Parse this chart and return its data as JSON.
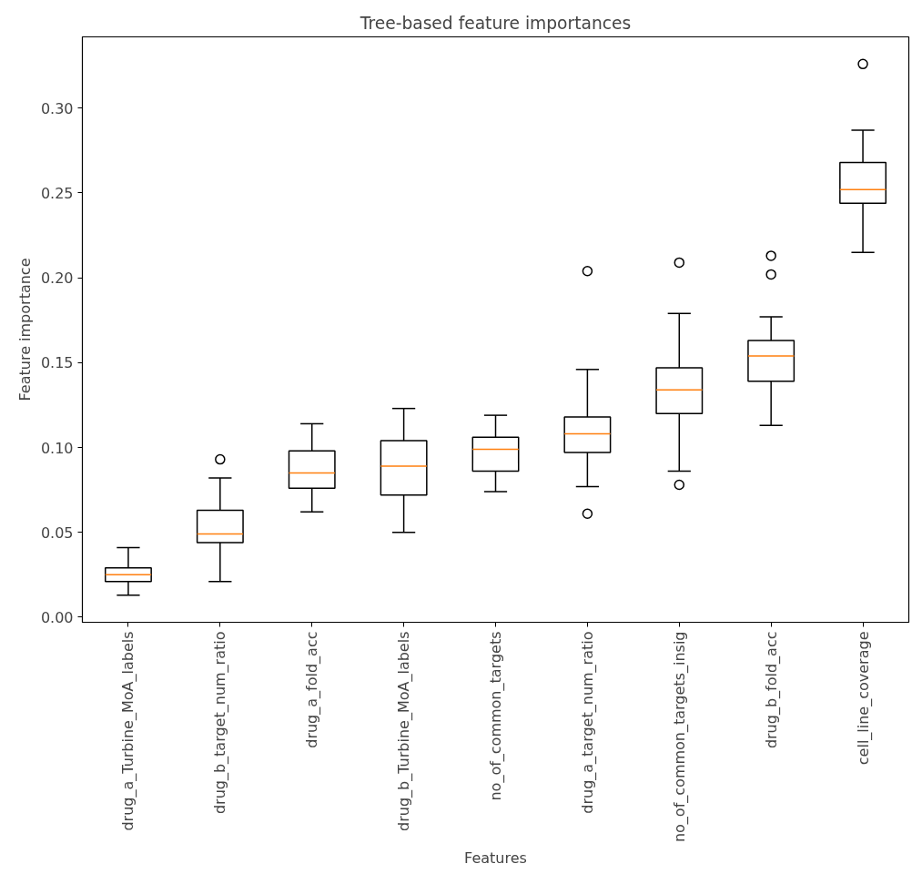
{
  "chart_data": {
    "type": "box",
    "title": "Tree-based feature importances",
    "xlabel": "Features",
    "ylabel": "Feature importance",
    "categories": [
      "drug_a_Turbine_MoA_labels",
      "drug_b_target_num_ratio",
      "drug_a_fold_acc",
      "drug_b_Turbine_MoA_labels",
      "no_of_common_targets",
      "drug_a_target_num_ratio",
      "no_of_common_targets_insig",
      "drug_b_fold_acc",
      "cell_line_coverage"
    ],
    "series": [
      {
        "color": "#000000",
        "boxes": [
          {
            "low": 0.013,
            "q1": 0.021,
            "median": 0.025,
            "q3": 0.029,
            "high": 0.041
          },
          {
            "low": 0.021,
            "q1": 0.044,
            "median": 0.049,
            "q3": 0.063,
            "high": 0.082,
            "outliers": [
              0.093
            ]
          },
          {
            "low": 0.062,
            "q1": 0.076,
            "median": 0.085,
            "q3": 0.098,
            "high": 0.114
          },
          {
            "low": 0.05,
            "q1": 0.072,
            "median": 0.089,
            "q3": 0.104,
            "high": 0.123
          },
          {
            "low": 0.074,
            "q1": 0.086,
            "median": 0.099,
            "q3": 0.106,
            "high": 0.119
          },
          {
            "low": 0.077,
            "q1": 0.097,
            "median": 0.108,
            "q3": 0.118,
            "high": 0.146,
            "outliers": [
              0.204,
              0.061
            ]
          },
          {
            "low": 0.086,
            "q1": 0.12,
            "median": 0.134,
            "q3": 0.147,
            "high": 0.179,
            "outliers": [
              0.209,
              0.078
            ]
          },
          {
            "low": 0.113,
            "q1": 0.139,
            "median": 0.154,
            "q3": 0.163,
            "high": 0.177,
            "outliers": [
              0.213,
              0.202
            ]
          },
          {
            "low": 0.215,
            "q1": 0.244,
            "median": 0.252,
            "q3": 0.268,
            "high": 0.287,
            "outliers": [
              0.326
            ]
          }
        ]
      }
    ],
    "ylim": [
      -0.003,
      0.342
    ],
    "yticks": [
      {
        "value": 0,
        "label": "0.00"
      },
      {
        "value": 0.05,
        "label": "0.05"
      },
      {
        "value": 0.1,
        "label": "0.10"
      },
      {
        "value": 0.15,
        "label": "0.15"
      },
      {
        "value": 0.2,
        "label": "0.20"
      },
      {
        "value": 0.25,
        "label": "0.25"
      },
      {
        "value": 0.3,
        "label": "0.30"
      }
    ],
    "grid": false
  }
}
